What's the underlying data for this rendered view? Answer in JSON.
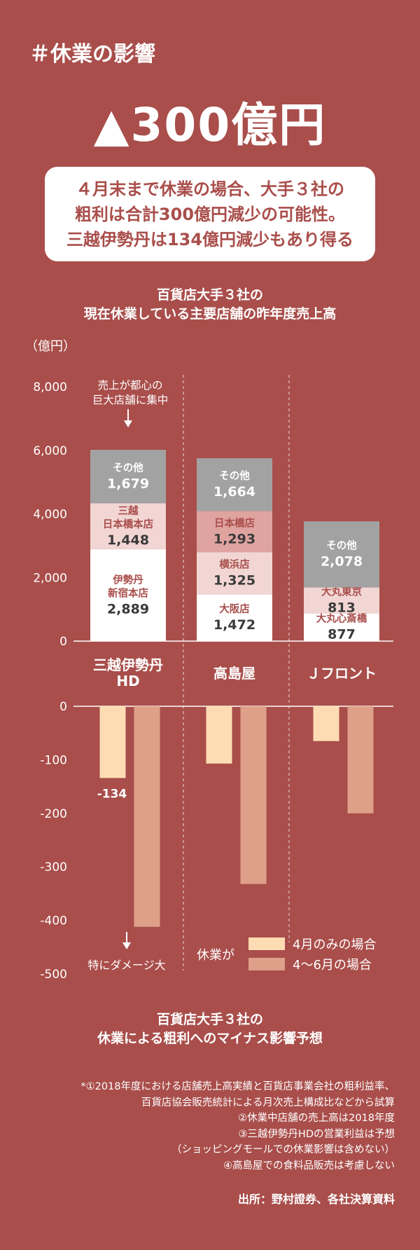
{
  "header": {
    "hashtag": "＃休業の影響",
    "headline": "▲300億円",
    "callout_lines": [
      "４月末まで休業の場合、大手３社の",
      "粗利は合計300億円減少の可能性。",
      "三越伊勢丹は134億円減少もあり得る"
    ]
  },
  "colors": {
    "background": "#a94e4b",
    "store_white": "#ffffff",
    "store_pink": "#f1d6d4",
    "store_darkpink": "#dfa3a0",
    "other_gray": "#a2a2a2",
    "april_only": "#fddcb3",
    "april_june": "#dea088",
    "label_red": "#a94e4b"
  },
  "chart_data": [
    {
      "type": "bar",
      "stacked": true,
      "title_lines": [
        "百貨店大手３社の",
        "現在休業している主要店舗の昨年度売上高"
      ],
      "unit_label": "（億円）",
      "ylim": [
        0,
        8000
      ],
      "yticks": [
        "8,000",
        "6,000",
        "4,000",
        "2,000",
        "0"
      ],
      "categories": [
        "三越伊勢丹\nHD",
        "高島屋",
        "Ｊフロント"
      ],
      "category_lines": [
        [
          "三越伊勢丹",
          "HD"
        ],
        [
          "高島屋"
        ],
        [
          "Ｊフロント"
        ]
      ],
      "stacks": [
        [
          {
            "lines": [
              "伊勢丹",
              "新宿本店"
            ],
            "value": 2889,
            "label": "2,889",
            "color": "store_white"
          },
          {
            "lines": [
              "三越",
              "日本橋本店"
            ],
            "value": 1448,
            "label": "1,448",
            "color": "store_pink"
          },
          {
            "lines": [
              "その他"
            ],
            "value": 1679,
            "label": "1,679",
            "color": "other_gray"
          }
        ],
        [
          {
            "lines": [
              "大阪店"
            ],
            "value": 1472,
            "label": "1,472",
            "color": "store_white"
          },
          {
            "lines": [
              "横浜店"
            ],
            "value": 1325,
            "label": "1,325",
            "color": "store_pink"
          },
          {
            "lines": [
              "日本橋店"
            ],
            "value": 1293,
            "label": "1,293",
            "color": "store_darkpink"
          },
          {
            "lines": [
              "その他"
            ],
            "value": 1664,
            "label": "1,664",
            "color": "other_gray"
          }
        ],
        [
          {
            "lines": [
              "大丸心斎橋"
            ],
            "value": 877,
            "label": "877",
            "color": "store_white"
          },
          {
            "lines": [
              "大丸東京"
            ],
            "value": 813,
            "label": "813",
            "color": "store_pink"
          },
          {
            "lines": [
              "その他"
            ],
            "value": 2078,
            "label": "2,078",
            "color": "other_gray"
          }
        ]
      ],
      "annotation_lines": [
        "売上が都心の",
        "巨大店舗に集中"
      ]
    },
    {
      "type": "bar",
      "title_lines": [
        "百貨店大手３社の",
        "休業による粗利へのマイナス影響予想"
      ],
      "ylim": [
        -500,
        0
      ],
      "yticks": [
        "0",
        "-100",
        "-200",
        "-300",
        "-400",
        "-500"
      ],
      "categories": [
        "三越伊勢丹HD",
        "高島屋",
        "Ｊフロント"
      ],
      "series": [
        {
          "name": "4月のみの場合",
          "color": "april_only",
          "values": [
            -134,
            -107,
            -65
          ]
        },
        {
          "name": "4～6月の場合",
          "color": "april_june",
          "values": [
            -412,
            -332,
            -200
          ]
        }
      ],
      "value_label": "-134",
      "legend_title": "休業が",
      "annotation": "特にダメージ大"
    }
  ],
  "notes": [
    "*①2018年度における店舗売上高実績と百貨店事業会社の粗利益率、",
    "百貨店協会販売統計による月次売上構成比などから試算",
    "②休業中店舗の売上高は2018年度",
    "③三越伊勢丹HDの営業利益は予想",
    "（ショッピングモールでの休業影響は含めない）",
    "④高島屋での食料品販売は考慮しない"
  ],
  "source": "出所：野村證券、各社決算資料"
}
